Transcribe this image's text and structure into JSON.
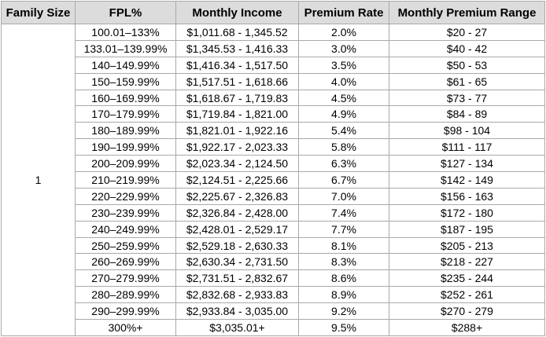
{
  "table": {
    "headers": [
      "Family Size",
      "FPL%",
      "Monthly Income",
      "Premium Rate",
      "Monthly Premium Range"
    ],
    "family_size": "1",
    "rows": [
      {
        "fpl": "100.01–133%",
        "income": "$1,011.68 - 1,345.52",
        "rate": "2.0%",
        "premium": "$20 - 27"
      },
      {
        "fpl": "133.01–139.99%",
        "income": "$1,345.53 - 1,416.33",
        "rate": "3.0%",
        "premium": "$40 - 42"
      },
      {
        "fpl": "140–149.99%",
        "income": "$1,416.34 - 1,517.50",
        "rate": "3.5%",
        "premium": "$50 - 53"
      },
      {
        "fpl": "150–159.99%",
        "income": "$1,517.51 - 1,618.66",
        "rate": "4.0%",
        "premium": "$61 - 65"
      },
      {
        "fpl": "160–169.99%",
        "income": "$1,618.67 - 1,719.83",
        "rate": "4.5%",
        "premium": "$73 - 77"
      },
      {
        "fpl": "170–179.99%",
        "income": "$1,719.84 - 1,821.00",
        "rate": "4.9%",
        "premium": "$84 - 89"
      },
      {
        "fpl": "180–189.99%",
        "income": "$1,821.01 - 1,922.16",
        "rate": "5.4%",
        "premium": "$98 - 104"
      },
      {
        "fpl": "190–199.99%",
        "income": "$1,922.17 - 2,023.33",
        "rate": "5.8%",
        "premium": "$111 - 117"
      },
      {
        "fpl": "200–209.99%",
        "income": "$2,023.34 - 2,124.50",
        "rate": "6.3%",
        "premium": "$127 - 134"
      },
      {
        "fpl": "210–219.99%",
        "income": "$2,124.51 - 2,225.66",
        "rate": "6.7%",
        "premium": "$142 - 149"
      },
      {
        "fpl": "220–229.99%",
        "income": "$2,225.67 - 2,326.83",
        "rate": "7.0%",
        "premium": "$156 - 163"
      },
      {
        "fpl": "230–239.99%",
        "income": "$2,326.84 - 2,428.00",
        "rate": "7.4%",
        "premium": "$172 - 180"
      },
      {
        "fpl": "240–249.99%",
        "income": "$2,428.01 - 2,529.17",
        "rate": "7.7%",
        "premium": "$187 - 195"
      },
      {
        "fpl": "250–259.99%",
        "income": "$2,529.18 - 2,630.33",
        "rate": "8.1%",
        "premium": "$205 - 213"
      },
      {
        "fpl": "260–269.99%",
        "income": "$2,630.34 - 2,731.50",
        "rate": "8.3%",
        "premium": "$218 - 227"
      },
      {
        "fpl": "270–279.99%",
        "income": "$2,731.51 - 2,832.67",
        "rate": "8.6%",
        "premium": "$235 - 244"
      },
      {
        "fpl": "280–289.99%",
        "income": "$2,832.68 - 2,933.83",
        "rate": "8.9%",
        "premium": "$252 - 261"
      },
      {
        "fpl": "290–299.99%",
        "income": "$2,933.84 - 3,035.00",
        "rate": "9.2%",
        "premium": "$270 - 279"
      },
      {
        "fpl": "300%+",
        "income": "$3,035.01+",
        "rate": "9.5%",
        "premium": "$288+"
      }
    ]
  }
}
